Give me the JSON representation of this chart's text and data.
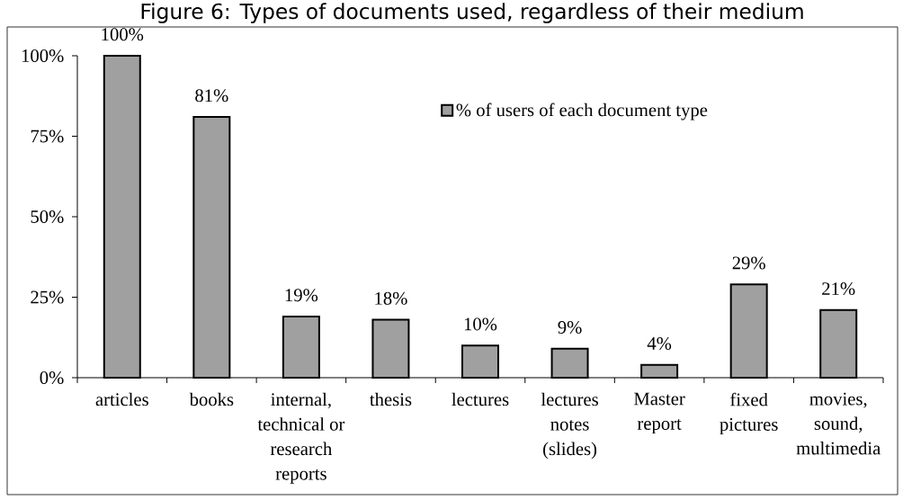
{
  "chart_data": {
    "type": "bar",
    "title": "Figure 6: Types of documents used, regardless of their medium",
    "categories": [
      "articles",
      "books",
      "internal, technical or research reports",
      "thesis",
      "lectures",
      "lectures notes (slides)",
      "Master report",
      "fixed pictures",
      "movies, sound, multimedia"
    ],
    "series": [
      {
        "name": "% of users of each document type",
        "color": "#a0a0a0",
        "values": [
          100,
          81,
          19,
          18,
          10,
          9,
          4,
          29,
          21
        ],
        "value_labels": [
          "100%",
          "81%",
          "19%",
          "18%",
          "10%",
          "9%",
          "4%",
          "29%",
          "21%"
        ]
      }
    ],
    "ylim": [
      0,
      100
    ],
    "yticks": [
      {
        "value": 0,
        "label": "0%"
      },
      {
        "value": 25,
        "label": "25%"
      },
      {
        "value": 50,
        "label": "50%"
      },
      {
        "value": 75,
        "label": "75%"
      },
      {
        "value": 100,
        "label": "100%"
      }
    ],
    "legend": "top right"
  }
}
